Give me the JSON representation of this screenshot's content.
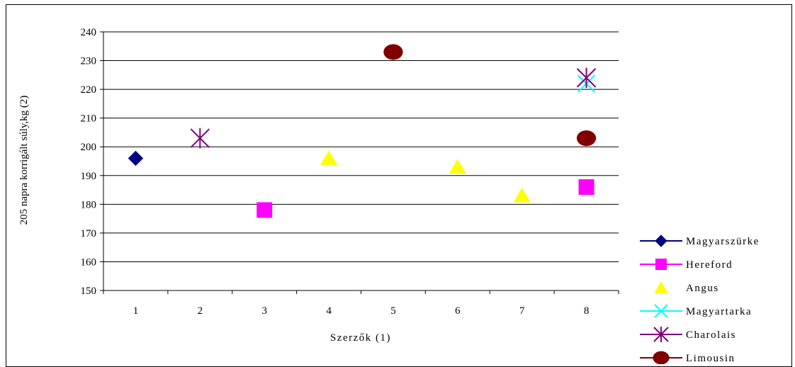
{
  "chart_data": {
    "type": "scatter",
    "xlabel": "Szerzők (1)",
    "ylabel": "205 napra korrigált súly,kg (2)",
    "categories": [
      "1",
      "2",
      "3",
      "4",
      "5",
      "6",
      "7",
      "8"
    ],
    "ylim": [
      150,
      240
    ],
    "yticks": [
      150,
      160,
      170,
      180,
      190,
      200,
      210,
      220,
      230,
      240
    ],
    "grid": true,
    "legend_position": "bottom-right",
    "series": [
      {
        "name": "Magyarszürke",
        "marker": "diamond",
        "color": "#000080",
        "points": [
          [
            1,
            196
          ]
        ]
      },
      {
        "name": "Hereford",
        "marker": "square",
        "color": "#FF00FF",
        "points": [
          [
            3,
            178
          ],
          [
            8,
            186
          ]
        ]
      },
      {
        "name": "Angus",
        "marker": "triangle",
        "color": "#FFFF00",
        "points": [
          [
            4,
            196
          ],
          [
            6,
            193
          ],
          [
            7,
            183
          ]
        ]
      },
      {
        "name": "Magyartarka",
        "marker": "x",
        "color": "#00FFFF",
        "points": [
          [
            8,
            222
          ]
        ]
      },
      {
        "name": "Charolais",
        "marker": "star",
        "color": "#800080",
        "points": [
          [
            2,
            203
          ],
          [
            8,
            224
          ]
        ]
      },
      {
        "name": "Limousin",
        "marker": "circle",
        "color": "#800000",
        "points": [
          [
            5,
            233
          ],
          [
            8,
            203
          ]
        ]
      }
    ]
  }
}
